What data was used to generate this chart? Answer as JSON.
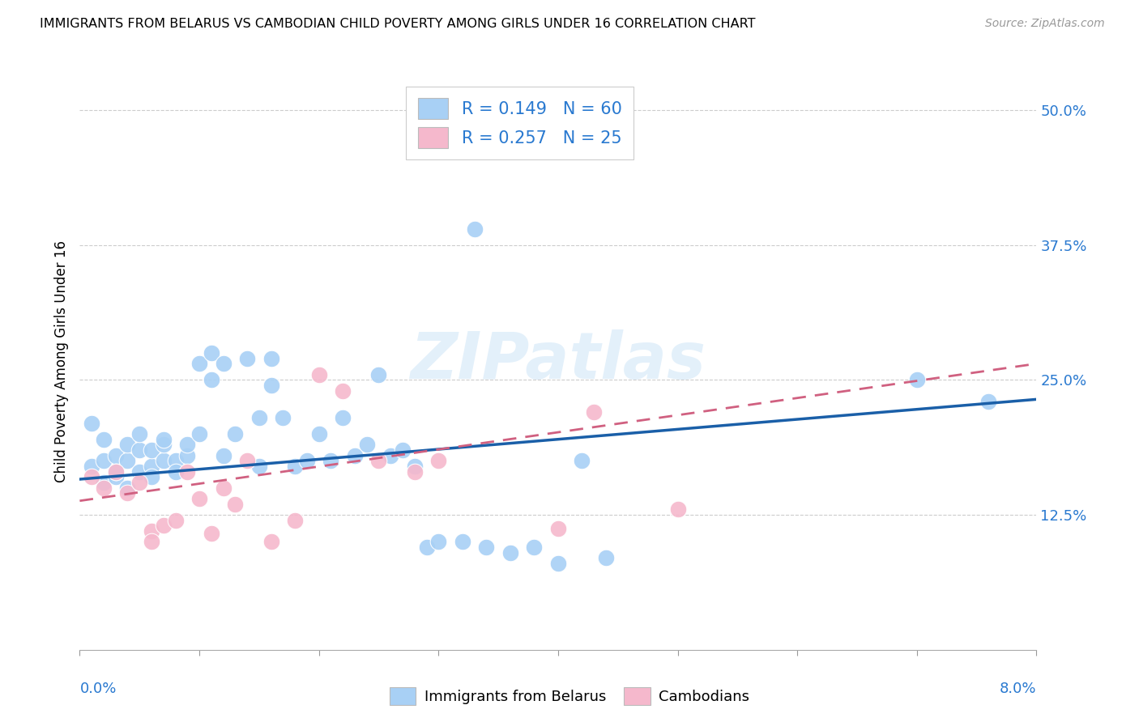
{
  "title": "IMMIGRANTS FROM BELARUS VS CAMBODIAN CHILD POVERTY AMONG GIRLS UNDER 16 CORRELATION CHART",
  "source": "Source: ZipAtlas.com",
  "ylabel": "Child Poverty Among Girls Under 16",
  "ytick_labels": [
    "12.5%",
    "25.0%",
    "37.5%",
    "50.0%"
  ],
  "ytick_values": [
    0.125,
    0.25,
    0.375,
    0.5
  ],
  "xlim": [
    0.0,
    0.08
  ],
  "ylim": [
    0.0,
    0.535
  ],
  "watermark_text": "ZIPatlas",
  "blue_color": "#a8d0f5",
  "pink_color": "#f5b8cc",
  "line_blue": "#1a5fa8",
  "line_pink": "#d06080",
  "text_blue": "#2979d0",
  "belarus_scatter_x": [
    0.001,
    0.001,
    0.002,
    0.002,
    0.002,
    0.003,
    0.003,
    0.003,
    0.004,
    0.004,
    0.004,
    0.005,
    0.005,
    0.005,
    0.006,
    0.006,
    0.006,
    0.007,
    0.007,
    0.007,
    0.008,
    0.008,
    0.009,
    0.009,
    0.01,
    0.01,
    0.011,
    0.011,
    0.012,
    0.012,
    0.013,
    0.014,
    0.015,
    0.015,
    0.016,
    0.016,
    0.017,
    0.018,
    0.019,
    0.02,
    0.021,
    0.022,
    0.023,
    0.024,
    0.025,
    0.026,
    0.027,
    0.028,
    0.029,
    0.03,
    0.032,
    0.033,
    0.034,
    0.036,
    0.038,
    0.04,
    0.042,
    0.044,
    0.07,
    0.076
  ],
  "belarus_scatter_y": [
    0.17,
    0.21,
    0.155,
    0.175,
    0.195,
    0.16,
    0.18,
    0.165,
    0.175,
    0.19,
    0.15,
    0.165,
    0.185,
    0.2,
    0.17,
    0.185,
    0.16,
    0.175,
    0.19,
    0.195,
    0.175,
    0.165,
    0.18,
    0.19,
    0.2,
    0.265,
    0.25,
    0.275,
    0.18,
    0.265,
    0.2,
    0.27,
    0.17,
    0.215,
    0.27,
    0.245,
    0.215,
    0.17,
    0.175,
    0.2,
    0.175,
    0.215,
    0.18,
    0.19,
    0.255,
    0.18,
    0.185,
    0.17,
    0.095,
    0.1,
    0.1,
    0.39,
    0.095,
    0.09,
    0.095,
    0.08,
    0.175,
    0.085,
    0.25,
    0.23
  ],
  "cambodian_scatter_x": [
    0.001,
    0.002,
    0.003,
    0.004,
    0.005,
    0.006,
    0.006,
    0.007,
    0.008,
    0.009,
    0.01,
    0.011,
    0.012,
    0.013,
    0.014,
    0.016,
    0.018,
    0.02,
    0.022,
    0.025,
    0.028,
    0.03,
    0.04,
    0.043,
    0.05
  ],
  "cambodian_scatter_y": [
    0.16,
    0.15,
    0.165,
    0.145,
    0.155,
    0.11,
    0.1,
    0.115,
    0.12,
    0.165,
    0.14,
    0.108,
    0.15,
    0.135,
    0.175,
    0.1,
    0.12,
    0.255,
    0.24,
    0.175,
    0.165,
    0.175,
    0.112,
    0.22,
    0.13
  ],
  "belarus_line_x": [
    0.0,
    0.08
  ],
  "belarus_line_y": [
    0.158,
    0.232
  ],
  "cambodian_line_x": [
    0.0,
    0.08
  ],
  "cambodian_line_y": [
    0.138,
    0.265
  ]
}
